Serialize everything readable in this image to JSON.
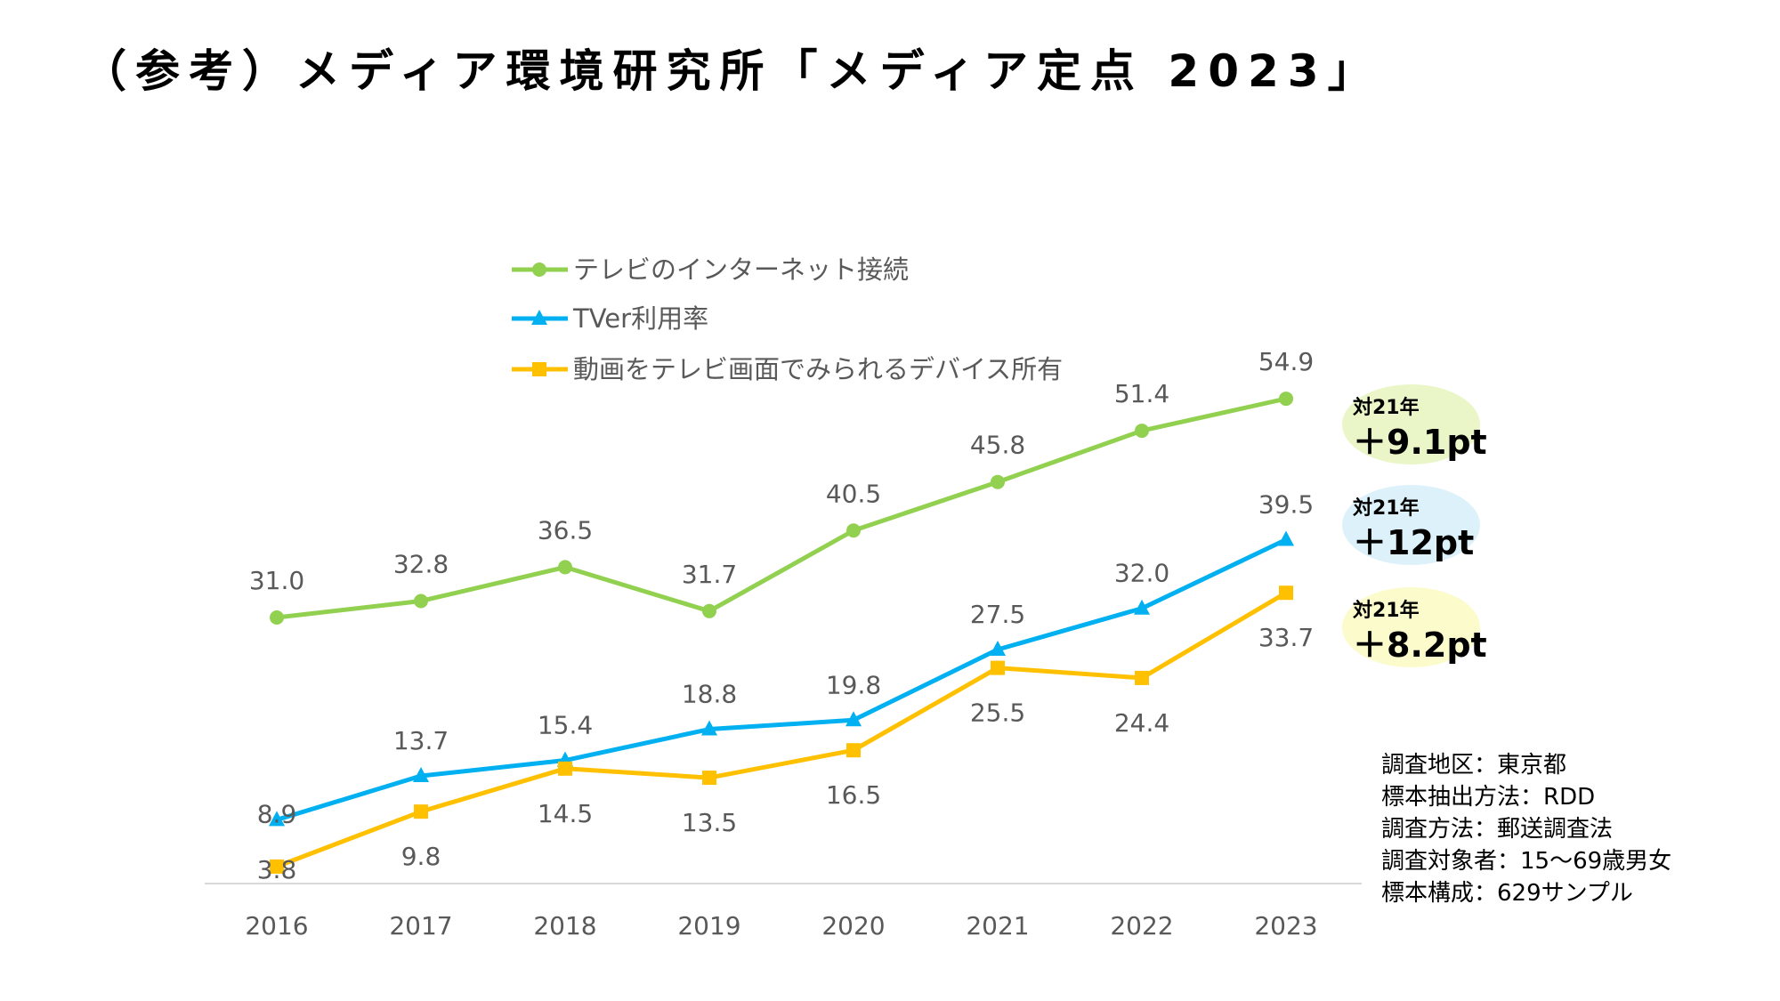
{
  "title": "（参考）メディア環境研究所「メディア定点 2023」",
  "chart_data": {
    "type": "line",
    "categories": [
      "2016",
      "2017",
      "2018",
      "2019",
      "2020",
      "2021",
      "2022",
      "2023"
    ],
    "series": [
      {
        "name": "テレビのインターネット接続",
        "values": [
          31.0,
          32.8,
          36.5,
          31.7,
          40.5,
          45.8,
          51.4,
          54.9
        ],
        "color": "#92D050",
        "marker": "circle"
      },
      {
        "name": "TVer利用率",
        "values": [
          8.9,
          13.7,
          15.4,
          18.8,
          19.8,
          27.5,
          32.0,
          39.5
        ],
        "color": "#00B0F0",
        "marker": "triangle"
      },
      {
        "name": "動画をテレビ画面でみられるデバイス所有",
        "values": [
          3.8,
          9.8,
          14.5,
          13.5,
          16.5,
          25.5,
          24.4,
          33.7
        ],
        "color": "#FFC000",
        "marker": "square"
      }
    ],
    "labels": {
      "0": [
        "31.0",
        "32.8",
        "36.5",
        "31.7",
        "40.5",
        "45.8",
        "51.4",
        "54.9"
      ],
      "1": [
        "8.9",
        "13.7",
        "15.4",
        "18.8",
        "19.8",
        "27.5",
        "32.0",
        "39.5"
      ],
      "2": [
        "3.8",
        "9.8",
        "14.5",
        "13.5",
        "16.5",
        "25.5",
        "24.4",
        "33.7"
      ]
    },
    "legend_position": "top-left",
    "grid": false
  },
  "badges": [
    {
      "small": "対21年",
      "big": "＋9.1pt",
      "color": "#EAF6C8"
    },
    {
      "small": "対21年",
      "big": "＋12pt",
      "color": "#DDF1FB"
    },
    {
      "small": "対21年",
      "big": "＋8.2pt",
      "color": "#FBFBCB"
    }
  ],
  "survey_info": [
    "調査地区：東京都",
    "標本抽出方法：RDD",
    "調査方法：郵送調査法",
    "調査対象者：15〜69歳男女",
    "標本構成：629サンプル"
  ]
}
